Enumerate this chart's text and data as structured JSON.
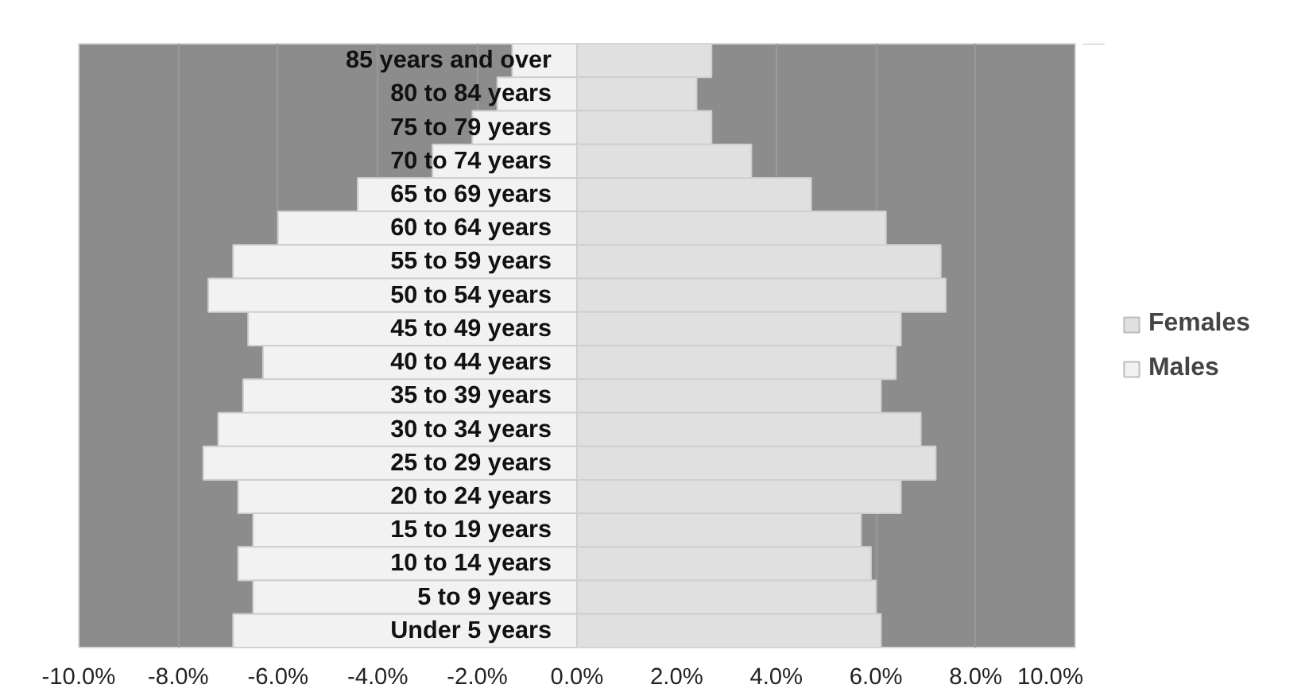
{
  "chart_data": {
    "type": "bar",
    "orientation": "horizontal",
    "stacked": true,
    "categories": [
      "85 years and over",
      "80 to 84 years",
      "75 to 79 years",
      "70 to 74 years",
      "65 to 69 years",
      "60 to 64 years",
      "55 to 59 years",
      "50 to 54 years",
      "45 to 49 years",
      "40 to 44 years",
      "35 to 39 years",
      "30 to 34 years",
      "25 to 29 years",
      "20 to 24 years",
      "15 to 19 years",
      "10 to 14 years",
      "5 to 9 years",
      "Under 5 years"
    ],
    "series": [
      {
        "name": "Females",
        "color": "#e0e0e0",
        "values": [
          2.7,
          2.4,
          2.7,
          3.5,
          4.7,
          6.2,
          7.3,
          7.4,
          6.5,
          6.4,
          6.1,
          6.9,
          7.2,
          6.5,
          5.7,
          5.9,
          6.0,
          6.1
        ]
      },
      {
        "name": "Males",
        "color": "#f2f2f2",
        "values": [
          -1.3,
          -1.6,
          -2.1,
          -2.9,
          -4.4,
          -6.0,
          -6.9,
          -7.4,
          -6.6,
          -6.3,
          -6.7,
          -7.2,
          -7.5,
          -6.8,
          -6.5,
          -6.8,
          -6.5,
          -6.9
        ]
      }
    ],
    "xlim": [
      -10,
      10
    ],
    "xticks": [
      {
        "value": -10,
        "label": "-10.0%"
      },
      {
        "value": -8,
        "label": "-8.0%"
      },
      {
        "value": -6,
        "label": "-6.0%"
      },
      {
        "value": -4,
        "label": "-4.0%"
      },
      {
        "value": -2,
        "label": "-2.0%"
      },
      {
        "value": 0,
        "label": "0.0%"
      },
      {
        "value": 2,
        "label": "2.0%"
      },
      {
        "value": 4,
        "label": "4.0%"
      },
      {
        "value": 6,
        "label": "6.0%"
      },
      {
        "value": 8,
        "label": "8.0%"
      },
      {
        "value": 10,
        "label": "10.0%"
      }
    ],
    "grid": "x",
    "legend": "right"
  }
}
